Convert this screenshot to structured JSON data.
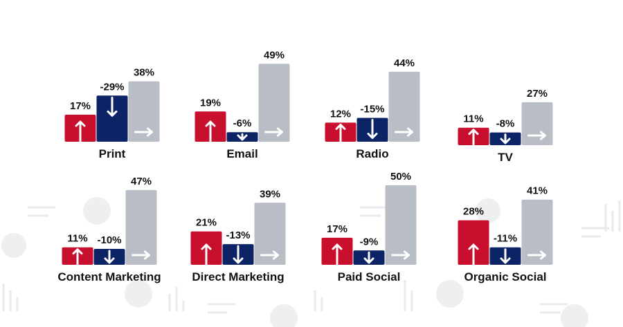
{
  "chart_data": {
    "type": "bar",
    "categories": [
      "Print",
      "Email",
      "Radio",
      "TV",
      "Content Marketing",
      "Direct Marketing",
      "Paid Social",
      "Organic Social"
    ],
    "series": [
      {
        "color": "#c8102e",
        "values": [
          17,
          19,
          12,
          11,
          11,
          21,
          17,
          28
        ],
        "value_labels": [
          "17%",
          "19%",
          "12%",
          "11%",
          "11%",
          "21%",
          "17%",
          "28%"
        ]
      },
      {
        "color": "#0c2365",
        "values": [
          -29,
          -6,
          -15,
          -8,
          -10,
          -13,
          -9,
          -11
        ],
        "value_labels": [
          "-29%",
          "-6%",
          "-15%",
          "-8%",
          "-10%",
          "-13%",
          "-9%",
          "-11%"
        ]
      },
      {
        "color": "#b9bec6",
        "values": [
          38,
          49,
          44,
          27,
          47,
          39,
          50,
          41
        ],
        "value_labels": [
          "38%",
          "49%",
          "44%",
          "27%",
          "47%",
          "39%",
          "50%",
          "41%"
        ]
      }
    ]
  }
}
